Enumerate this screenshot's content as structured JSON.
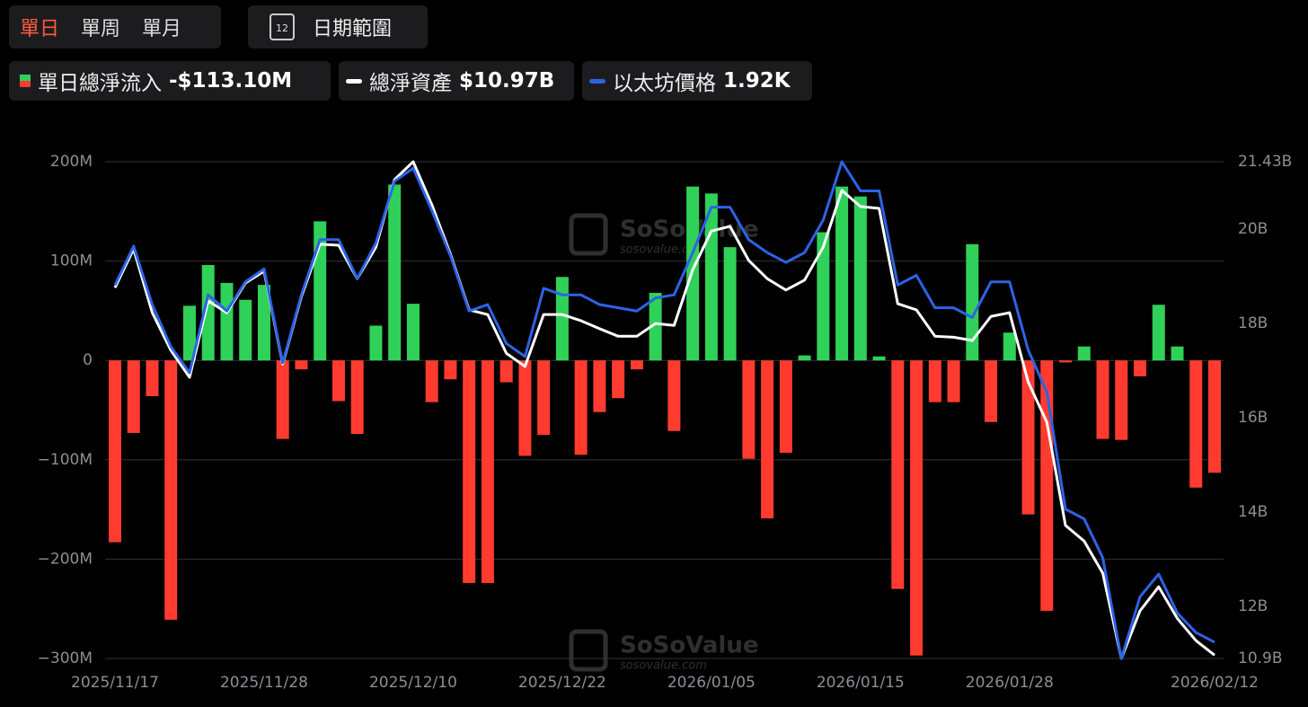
{
  "tabs": [
    "單日",
    "單周",
    "單月"
  ],
  "date_range_button": "日期範圍",
  "calendar_icon_day": "12",
  "watermark": {
    "name": "SoSoValue",
    "url": "sosovalue.com"
  },
  "chart_data": {
    "type": "bar",
    "categories": [
      "2025/11/17",
      null,
      null,
      null,
      null,
      null,
      null,
      null,
      "2025/11/28",
      null,
      null,
      null,
      null,
      null,
      null,
      null,
      "2025/12/10",
      null,
      null,
      null,
      null,
      null,
      null,
      null,
      "2025/12/22",
      null,
      null,
      null,
      null,
      null,
      null,
      null,
      "2026/01/05",
      null,
      null,
      null,
      null,
      null,
      null,
      null,
      "2026/01/15",
      null,
      null,
      null,
      null,
      null,
      null,
      null,
      "2026/01/28",
      null,
      null,
      null,
      null,
      null,
      null,
      null,
      null,
      null,
      null,
      "2026/02/12"
    ],
    "series": [
      {
        "name": "單日總淨流入",
        "latest": "-$113.10M",
        "color_positive": "#30d158",
        "color_negative": "#ff3b30",
        "values": [
          -183,
          -73,
          -36,
          -261,
          55,
          96,
          78,
          61,
          76,
          -79,
          -9,
          140,
          -41,
          -74,
          35,
          177,
          57,
          -42,
          -19,
          -224,
          -224,
          -22,
          -96,
          -75,
          84,
          -95,
          -52,
          -38,
          -9,
          68,
          -71,
          175,
          168,
          114,
          -99,
          -159,
          -93,
          5,
          129,
          175,
          165,
          4,
          -230,
          -297,
          -42,
          -42,
          117,
          -62,
          28,
          -155,
          -252,
          -2,
          14,
          -79,
          -80,
          -16,
          56,
          14,
          -128,
          -113.1
        ]
      },
      {
        "name": "總淨資產",
        "latest": "$10.97B",
        "color": "#ffffff",
        "axis": "y2",
        "values": [
          18.76,
          19.58,
          18.23,
          17.43,
          16.86,
          18.48,
          18.23,
          18.86,
          19.11,
          17.14,
          18.57,
          19.68,
          19.66,
          18.95,
          19.62,
          21.05,
          21.43,
          20.52,
          19.47,
          18.29,
          18.19,
          17.37,
          17.09,
          18.19,
          18.19,
          18.06,
          17.89,
          17.73,
          17.73,
          18.0,
          17.96,
          19.14,
          19.96,
          20.06,
          19.34,
          18.95,
          18.71,
          18.92,
          19.62,
          20.82,
          20.48,
          20.44,
          18.42,
          18.29,
          17.73,
          17.71,
          17.64,
          18.15,
          18.23,
          16.76,
          15.91,
          13.72,
          13.39,
          12.71,
          10.9,
          11.91,
          12.42,
          11.75,
          11.28,
          10.97
        ]
      },
      {
        "name": "以太坊價格",
        "latest": "1.92K",
        "color": "#2d63e6",
        "axis": "y3",
        "values": [
          3.02,
          3.14,
          2.96,
          2.83,
          2.75,
          2.99,
          2.94,
          3.03,
          3.07,
          2.78,
          2.99,
          3.16,
          3.16,
          3.04,
          3.15,
          3.34,
          3.38,
          3.25,
          3.11,
          2.94,
          2.96,
          2.84,
          2.8,
          3.01,
          2.99,
          2.99,
          2.96,
          2.95,
          2.94,
          2.98,
          2.99,
          3.12,
          3.26,
          3.26,
          3.16,
          3.12,
          3.09,
          3.12,
          3.22,
          3.4,
          3.31,
          3.31,
          3.02,
          3.05,
          2.95,
          2.95,
          2.92,
          3.03,
          3.03,
          2.82,
          2.69,
          2.33,
          2.3,
          2.18,
          1.87,
          2.06,
          2.13,
          2.01,
          1.95,
          1.92
        ]
      }
    ],
    "ylim": [
      -300,
      200
    ],
    "yticks": [
      {
        "value": 200,
        "label": "200M"
      },
      {
        "value": 100,
        "label": "100M"
      },
      {
        "value": 0,
        "label": "0"
      },
      {
        "value": -100,
        "label": "−100M"
      },
      {
        "value": -200,
        "label": "−200M"
      },
      {
        "value": -300,
        "label": "−300M"
      }
    ],
    "y2lim": [
      10.9,
      21.43
    ],
    "y2ticks": [
      {
        "value": 21.43,
        "label": "21.43B"
      },
      {
        "value": 20,
        "label": "20B"
      },
      {
        "value": 18,
        "label": "18B"
      },
      {
        "value": 16,
        "label": "16B"
      },
      {
        "value": 14,
        "label": "14B"
      },
      {
        "value": 12,
        "label": "12B"
      },
      {
        "value": 10.9,
        "label": "10.9B"
      }
    ],
    "y3lim": [
      1.87,
      3.4
    ],
    "grid": true
  }
}
